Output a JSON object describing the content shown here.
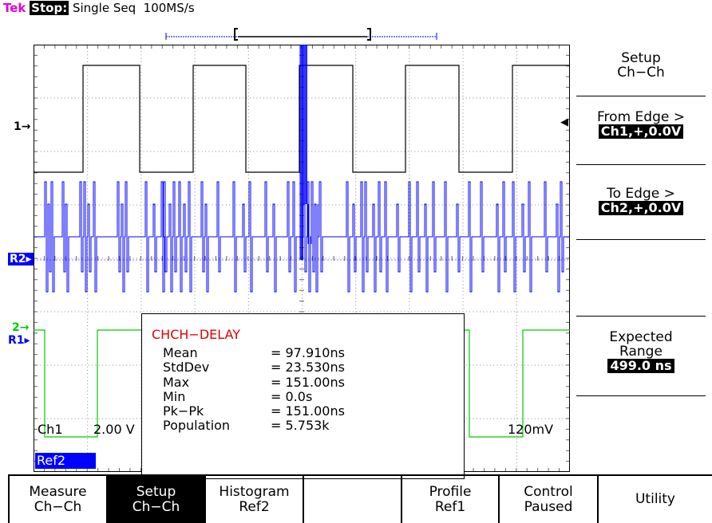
{
  "status": {
    "brand": "Tek",
    "state": "Stop:",
    "mode": "Single Seq",
    "rate": "100MS/s"
  },
  "markers": {
    "ch1": "1→",
    "r2": "R2▸",
    "ch2": "2→",
    "r1": "R1▸",
    "trigger_arrow": "◀"
  },
  "measurement": {
    "title": "CHCH−DELAY",
    "rows": [
      {
        "label": "Mean",
        "value": "= 97.910ns"
      },
      {
        "label": "StdDev",
        "value": "= 23.530ns"
      },
      {
        "label": "Max",
        "value": "= 151.00ns"
      },
      {
        "label": "Min",
        "value": "= 0.0s"
      },
      {
        "label": "Pk−Pk",
        "value": "= 151.00ns"
      },
      {
        "label": "Population",
        "value": "= 5.753k"
      }
    ]
  },
  "readouts": {
    "ch1_name": "Ch1",
    "ch1_scale": "2.00 V",
    "ch2_scale": "120mV",
    "ref2": "Ref2"
  },
  "side_menu": {
    "setup": [
      "Setup",
      "Ch−Ch"
    ],
    "from_edge": {
      "label": "From Edge >",
      "value": "Ch1,+,0.0V"
    },
    "to_edge": {
      "label": "To Edge >",
      "value": "Ch2,+,0.0V"
    },
    "expected": {
      "label1": "Expected",
      "label2": "Range",
      "value": "499.0 ns"
    }
  },
  "bottom_menu": [
    {
      "line1": "Measure",
      "line2": "Ch−Ch"
    },
    {
      "line1": "Setup",
      "line2": "Ch−Ch"
    },
    {
      "line1": "Histogram",
      "line2": "Ref2"
    },
    {
      "line1": "",
      "line2": ""
    },
    {
      "line1": "Profile",
      "line2": "Ref1"
    },
    {
      "line1": "Control",
      "line2": "Paused"
    },
    {
      "line1": "Utility",
      "line2": ""
    }
  ],
  "colors": {
    "ch1": "#000000",
    "ch2": "#00cc00",
    "ref2": "#0000ff",
    "title": "#e00000",
    "brand": "#e000e0"
  }
}
